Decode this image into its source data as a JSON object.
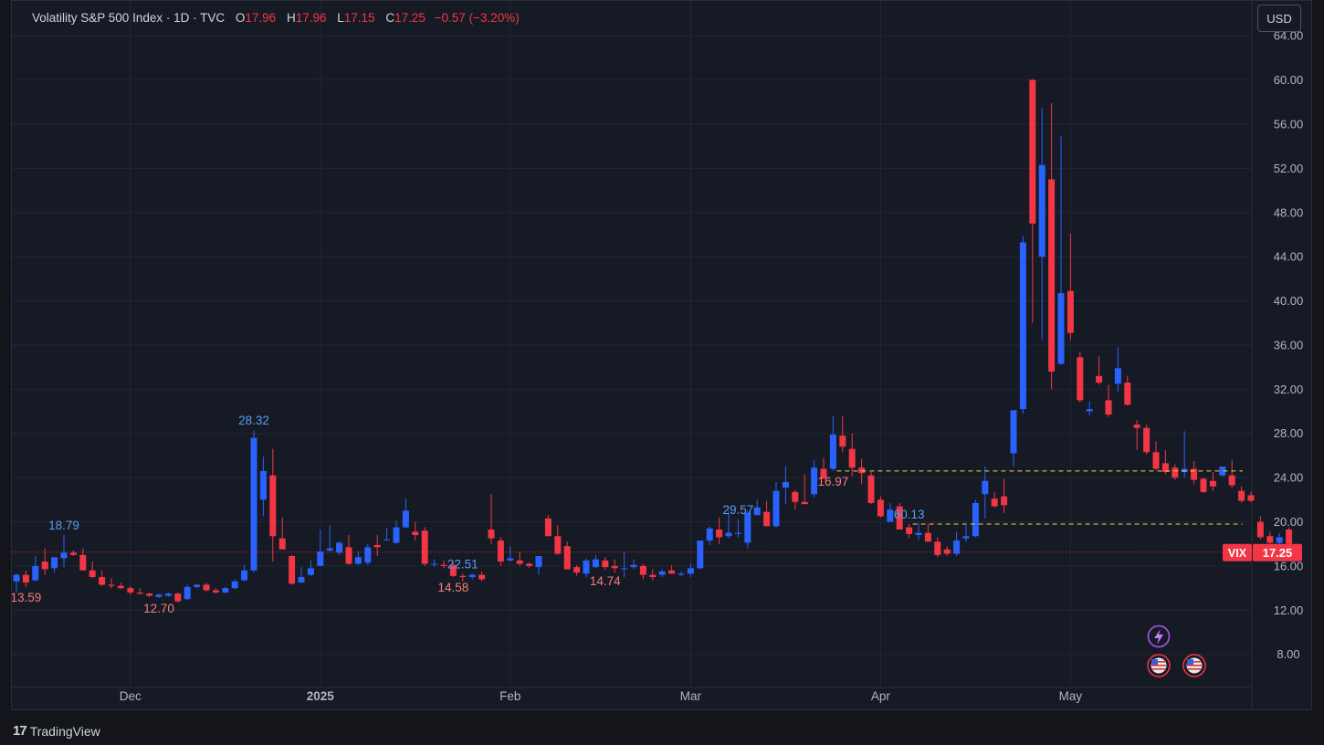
{
  "legend": {
    "title": "Volatility S&P 500 Index · 1D · TVC",
    "open_label": "O",
    "open": "17.96",
    "high_label": "H",
    "high": "17.96",
    "low_label": "L",
    "low": "17.15",
    "close_label": "C",
    "close": "17.25",
    "change": "−0.57 (−3.20%)"
  },
  "currency_button": "USD",
  "footer": {
    "brand": "TradingView"
  },
  "colors": {
    "up": "#2962ff",
    "down": "#f23645",
    "background": "#161a25",
    "grid": "#242733",
    "accent": "#f5d742"
  },
  "icons": [
    "lightning-event-icon",
    "us-flag-event-icon",
    "us-flag-event-icon"
  ],
  "chart_data": {
    "type": "candlestick",
    "ylim": [
      5,
      66
    ],
    "y_ticks": [
      "8.00",
      "12.00",
      "16.00",
      "20.00",
      "24.00",
      "28.00",
      "32.00",
      "36.00",
      "40.00",
      "44.00",
      "48.00",
      "52.00",
      "56.00",
      "60.00",
      "64.00"
    ],
    "x_labels": [
      "Dec",
      "2025",
      "Feb",
      "Mar",
      "Apr",
      "May"
    ],
    "price_label": {
      "symbol": "VIX",
      "value": "17.25"
    },
    "annotations": [
      "13.59",
      "18.79",
      "12.70",
      "28.32",
      "22.51",
      "14.58",
      "14.74",
      "29.57",
      "16.97",
      "60.13"
    ],
    "ohlc": [
      [
        14.6,
        15.3,
        13.6,
        15.2
      ],
      [
        15.2,
        15.6,
        14.1,
        14.5
      ],
      [
        14.7,
        16.9,
        14.6,
        16.0
      ],
      [
        16.4,
        17.6,
        15.2,
        15.7
      ],
      [
        15.8,
        16.5,
        15.4,
        16.8
      ],
      [
        16.7,
        18.8,
        15.9,
        17.2
      ],
      [
        17.2,
        17.4,
        16.9,
        17.0
      ],
      [
        17.0,
        17.6,
        15.6,
        15.6
      ],
      [
        15.6,
        16.4,
        14.9,
        15.0
      ],
      [
        15.0,
        15.6,
        14.2,
        14.3
      ],
      [
        14.3,
        14.9,
        14.0,
        14.2
      ],
      [
        14.2,
        14.5,
        13.9,
        14.0
      ],
      [
        14.0,
        14.2,
        13.4,
        13.6
      ],
      [
        13.6,
        14.0,
        13.4,
        13.5
      ],
      [
        13.5,
        13.6,
        13.2,
        13.3
      ],
      [
        13.2,
        13.5,
        13.1,
        13.4
      ],
      [
        13.3,
        13.6,
        13.2,
        13.5
      ],
      [
        13.5,
        13.6,
        12.7,
        12.8
      ],
      [
        13.0,
        14.3,
        12.9,
        14.1
      ],
      [
        14.1,
        14.4,
        14.0,
        14.3
      ],
      [
        14.3,
        14.5,
        13.7,
        13.8
      ],
      [
        13.8,
        14.0,
        13.5,
        13.6
      ],
      [
        13.6,
        14.1,
        13.5,
        14.0
      ],
      [
        14.0,
        14.8,
        13.9,
        14.6
      ],
      [
        14.7,
        16.1,
        14.6,
        15.6
      ],
      [
        15.6,
        28.3,
        15.4,
        27.6
      ],
      [
        22.0,
        25.9,
        20.5,
        24.6
      ],
      [
        24.2,
        26.6,
        16.4,
        18.7
      ],
      [
        18.5,
        20.4,
        17.8,
        17.5
      ],
      [
        16.9,
        17.0,
        14.3,
        14.4
      ],
      [
        14.5,
        15.9,
        14.5,
        15.0
      ],
      [
        15.2,
        16.5,
        15.1,
        15.8
      ],
      [
        16.0,
        19.3,
        16.0,
        17.3
      ],
      [
        17.4,
        19.7,
        17.2,
        17.6
      ],
      [
        17.2,
        18.2,
        17.0,
        18.1
      ],
      [
        17.7,
        18.8,
        16.1,
        16.2
      ],
      [
        16.2,
        17.3,
        16.1,
        16.8
      ],
      [
        16.3,
        18.0,
        16.1,
        17.7
      ],
      [
        17.9,
        18.8,
        16.9,
        17.7
      ],
      [
        18.4,
        19.4,
        18.4,
        18.4
      ],
      [
        18.1,
        20.1,
        18.0,
        19.5
      ],
      [
        19.5,
        22.1,
        19.4,
        21.0
      ],
      [
        19.1,
        20.0,
        18.3,
        18.8
      ],
      [
        19.2,
        19.5,
        16.0,
        16.2
      ],
      [
        16.2,
        16.6,
        15.9,
        16.2
      ],
      [
        16.1,
        16.5,
        15.8,
        16.0
      ],
      [
        16.1,
        16.3,
        15.0,
        15.1
      ],
      [
        15.1,
        15.3,
        14.6,
        15.0
      ],
      [
        15.0,
        15.3,
        14.8,
        15.2
      ],
      [
        15.2,
        15.5,
        14.6,
        14.8
      ],
      [
        19.3,
        22.5,
        18.0,
        18.5
      ],
      [
        18.3,
        18.6,
        16.0,
        16.4
      ],
      [
        16.5,
        17.8,
        16.4,
        16.7
      ],
      [
        16.5,
        17.3,
        16.0,
        16.2
      ],
      [
        16.2,
        16.3,
        15.8,
        16.0
      ],
      [
        15.9,
        16.8,
        15.2,
        16.9
      ],
      [
        20.3,
        20.6,
        18.7,
        18.7
      ],
      [
        18.7,
        19.7,
        17.0,
        17.1
      ],
      [
        17.8,
        18.2,
        15.7,
        15.7
      ],
      [
        15.9,
        16.1,
        15.1,
        15.4
      ],
      [
        15.3,
        16.7,
        15.0,
        16.5
      ],
      [
        15.9,
        17.0,
        15.8,
        16.6
      ],
      [
        16.5,
        16.8,
        15.6,
        15.9
      ],
      [
        16.0,
        16.6,
        15.4,
        15.8
      ],
      [
        15.8,
        17.3,
        15.0,
        15.8
      ],
      [
        15.9,
        16.6,
        15.7,
        16.1
      ],
      [
        16.0,
        16.2,
        14.8,
        15.2
      ],
      [
        15.2,
        15.7,
        14.7,
        15.0
      ],
      [
        15.2,
        15.7,
        15.0,
        15.5
      ],
      [
        15.6,
        16.1,
        15.3,
        15.3
      ],
      [
        15.2,
        15.5,
        15.1,
        15.3
      ],
      [
        15.3,
        16.2,
        15.0,
        15.8
      ],
      [
        15.8,
        18.3,
        15.7,
        18.3
      ],
      [
        18.3,
        19.6,
        17.9,
        19.4
      ],
      [
        19.3,
        20.4,
        18.0,
        18.6
      ],
      [
        18.7,
        21.0,
        18.5,
        19.0
      ],
      [
        18.9,
        20.2,
        18.6,
        19.0
      ],
      [
        18.1,
        21.0,
        17.6,
        20.8
      ],
      [
        20.6,
        22.0,
        20.6,
        21.3
      ],
      [
        20.9,
        21.9,
        19.6,
        19.6
      ],
      [
        19.6,
        23.6,
        19.5,
        22.8
      ],
      [
        23.1,
        25.0,
        21.6,
        23.6
      ],
      [
        22.7,
        22.9,
        21.1,
        21.8
      ],
      [
        21.8,
        24.3,
        21.8,
        21.6
      ],
      [
        22.5,
        25.6,
        22.2,
        24.9
      ],
      [
        24.8,
        25.8,
        24.2,
        23.9
      ],
      [
        24.8,
        29.6,
        24.6,
        27.9
      ],
      [
        27.8,
        29.6,
        26.3,
        26.8
      ],
      [
        26.6,
        28.0,
        24.1,
        24.9
      ],
      [
        24.9,
        25.7,
        23.4,
        24.4
      ],
      [
        24.2,
        24.5,
        21.6,
        21.7
      ],
      [
        22.0,
        22.3,
        20.4,
        20.5
      ],
      [
        20.0,
        21.7,
        20.0,
        21.1
      ],
      [
        21.4,
        21.7,
        19.3,
        19.3
      ],
      [
        19.5,
        19.8,
        18.5,
        18.9
      ],
      [
        18.8,
        19.9,
        18.4,
        19.0
      ],
      [
        19.0,
        19.8,
        18.2,
        18.2
      ],
      [
        18.2,
        18.6,
        16.8,
        17.0
      ],
      [
        17.5,
        17.8,
        16.9,
        17.1
      ],
      [
        17.1,
        19.1,
        16.9,
        18.3
      ],
      [
        18.5,
        19.7,
        18.2,
        18.7
      ],
      [
        18.7,
        22.0,
        18.6,
        21.7
      ],
      [
        22.5,
        25.0,
        20.3,
        23.7
      ],
      [
        22.1,
        22.7,
        21.3,
        21.4
      ],
      [
        22.3,
        23.9,
        20.8,
        21.5
      ],
      [
        26.2,
        30.1,
        25.0,
        30.1
      ],
      [
        30.2,
        45.9,
        29.8,
        45.3
      ],
      [
        60.0,
        60.1,
        38.0,
        47.0
      ],
      [
        44.0,
        57.5,
        36.5,
        52.3
      ],
      [
        51.0,
        57.9,
        32.0,
        33.6
      ],
      [
        34.3,
        54.9,
        34.2,
        40.7
      ],
      [
        40.9,
        46.1,
        36.5,
        37.1
      ],
      [
        34.9,
        35.4,
        30.8,
        31.0
      ],
      [
        30.0,
        30.9,
        29.6,
        30.2
      ],
      [
        33.2,
        35.0,
        32.4,
        32.6
      ],
      [
        31.0,
        32.4,
        29.5,
        29.7
      ],
      [
        32.5,
        35.8,
        31.8,
        33.9
      ],
      [
        32.6,
        33.2,
        30.5,
        30.6
      ],
      [
        28.8,
        29.2,
        26.5,
        28.5
      ],
      [
        28.5,
        28.8,
        26.1,
        26.3
      ],
      [
        26.3,
        27.3,
        24.7,
        24.8
      ],
      [
        25.3,
        26.5,
        24.3,
        24.5
      ],
      [
        24.9,
        25.2,
        23.8,
        24.0
      ],
      [
        24.5,
        28.2,
        24.0,
        24.8
      ],
      [
        24.8,
        25.5,
        23.4,
        23.8
      ],
      [
        23.9,
        24.0,
        22.6,
        22.7
      ],
      [
        23.7,
        24.5,
        22.8,
        23.2
      ],
      [
        24.2,
        24.9,
        24.1,
        25.0
      ],
      [
        24.2,
        25.6,
        23.1,
        23.3
      ],
      [
        22.8,
        23.2,
        21.7,
        21.9
      ],
      [
        22.4,
        22.7,
        21.8,
        21.9
      ],
      [
        20.0,
        20.5,
        18.4,
        18.6
      ],
      [
        18.7,
        19.1,
        17.9,
        18.1
      ],
      [
        18.1,
        19.0,
        17.9,
        18.6
      ],
      [
        19.3,
        19.5,
        17.9,
        18.0
      ],
      [
        17.96,
        17.96,
        17.15,
        17.25
      ]
    ]
  }
}
